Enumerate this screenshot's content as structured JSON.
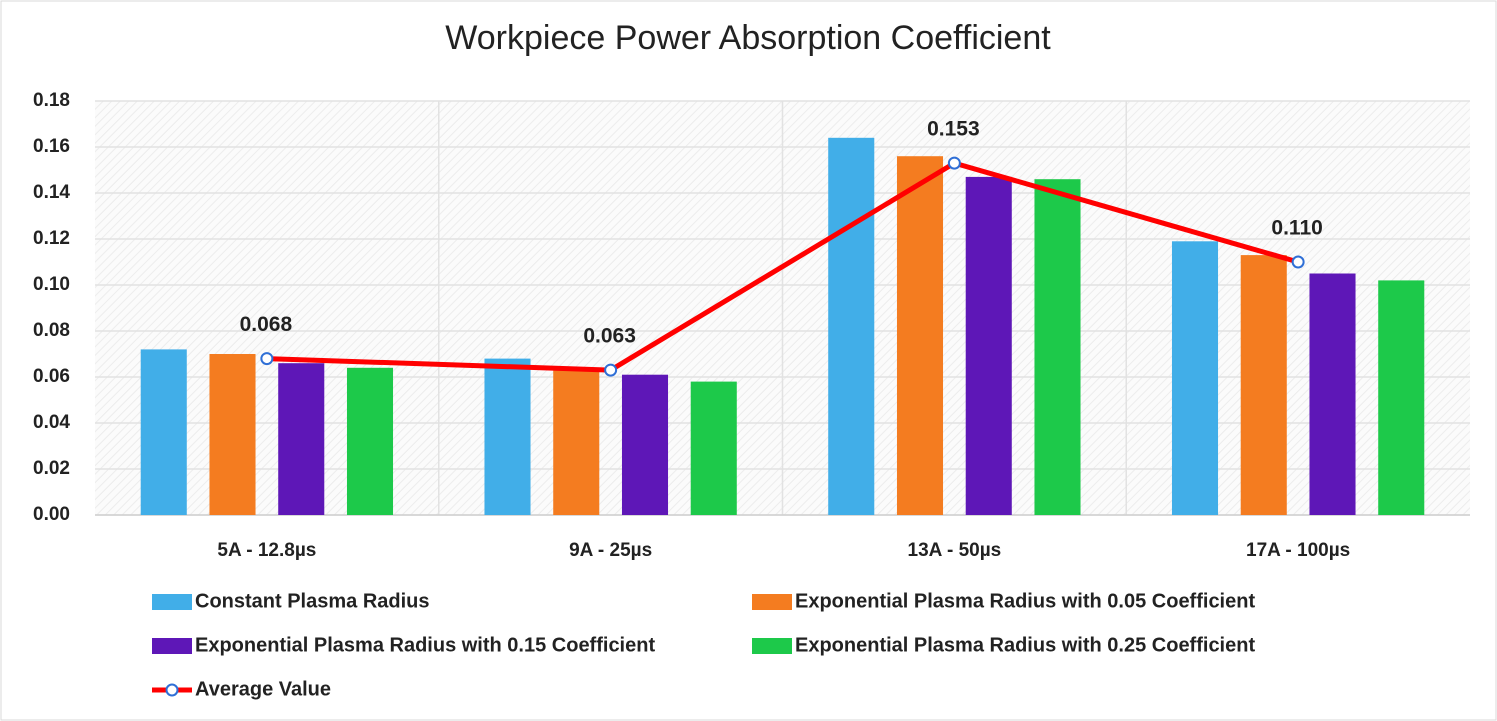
{
  "chart_data": {
    "type": "bar",
    "title": "Workpiece Power Absorption Coefficient",
    "categories": [
      "5A - 12.8µs",
      "9A - 25µs",
      "13A - 50µs",
      "17A - 100µs"
    ],
    "series": [
      {
        "name": "Constant Plasma Radius",
        "color": "#41aee8",
        "values": [
          0.072,
          0.068,
          0.164,
          0.119
        ]
      },
      {
        "name": "Exponential Plasma Radius with 0.05 Coefficient",
        "color": "#f47c20",
        "values": [
          0.07,
          0.063,
          0.156,
          0.113
        ]
      },
      {
        "name": "Exponential Plasma Radius with 0.15 Coefficient",
        "color": "#5e17b7",
        "values": [
          0.066,
          0.061,
          0.147,
          0.105
        ]
      },
      {
        "name": "Exponential Plasma Radius with 0.25 Coefficient",
        "color": "#1dc94a",
        "values": [
          0.064,
          0.058,
          0.146,
          0.102
        ]
      },
      {
        "name": "Average Value",
        "type": "line",
        "color": "#ff0000",
        "marker_color": "#2f6fd6",
        "values": [
          0.068,
          0.063,
          0.153,
          0.11
        ],
        "value_labels": [
          "0.068",
          "0.063",
          "0.153",
          "0.110"
        ]
      }
    ],
    "ylim": [
      0,
      0.18
    ],
    "yticks": [
      {
        "value": 0,
        "label": "0.00"
      },
      {
        "value": 0.02,
        "label": "0.02"
      },
      {
        "value": 0.04,
        "label": "0.04"
      },
      {
        "value": 0.06,
        "label": "0.06"
      },
      {
        "value": 0.08,
        "label": "0.08"
      },
      {
        "value": 0.1,
        "label": "0.10"
      },
      {
        "value": 0.12,
        "label": "0.12"
      },
      {
        "value": 0.14,
        "label": "0.14"
      },
      {
        "value": 0.16,
        "label": "0.16"
      },
      {
        "value": 0.18,
        "label": "0.18"
      }
    ],
    "grid": true
  }
}
